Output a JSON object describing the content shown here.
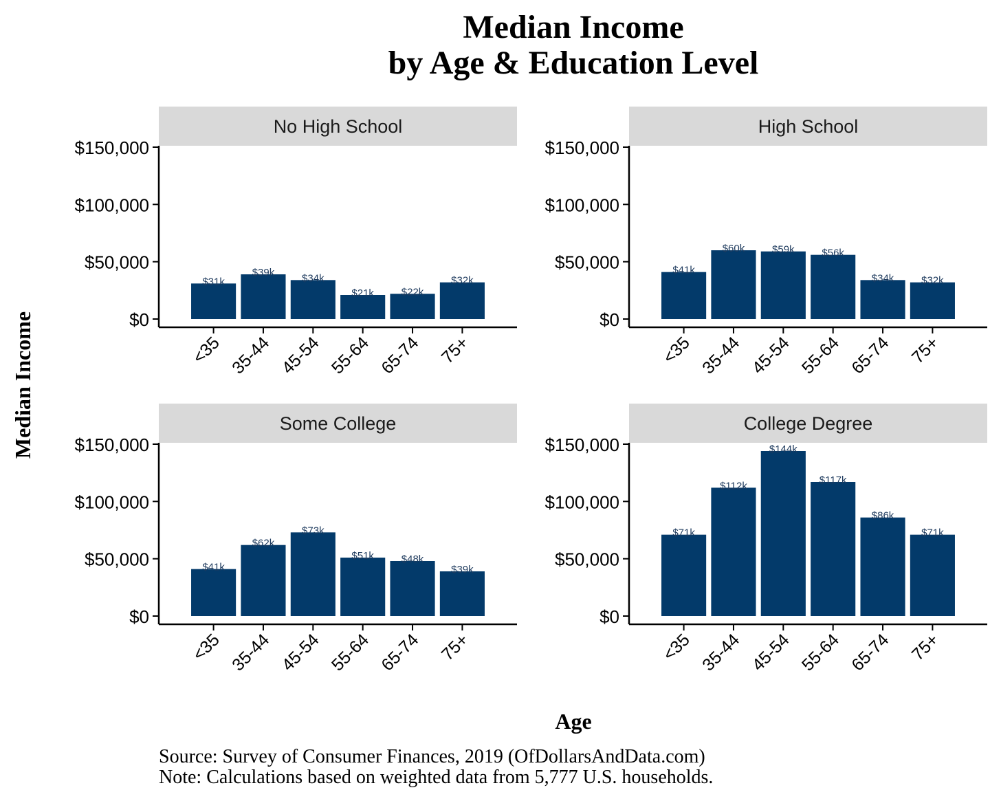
{
  "title": "Median Income",
  "subtitle": "by Age & Education Level",
  "y_label": "Median Income",
  "x_label": "Age",
  "source": "Source:  Survey of Consumer Finances, 2019 (OfDollarsAndData.com)",
  "note": "Note: Calculations based on weighted data from 5,777 U.S. households.",
  "chart_data": [
    {
      "type": "bar",
      "title": "No High School",
      "color": "#033a6a",
      "categories": [
        "<35",
        "35-44",
        "45-54",
        "55-64",
        "65-74",
        "75+"
      ],
      "values": [
        31000,
        39000,
        34000,
        21000,
        22000,
        32000
      ],
      "value_labels": [
        "$31k",
        "$39k",
        "$34k",
        "$21k",
        "$22k",
        "$32k"
      ],
      "ylim": [
        -7200,
        151200
      ],
      "yticks": [
        {
          "value": 0,
          "label": "$0"
        },
        {
          "value": 50000,
          "label": "$50,000"
        },
        {
          "value": 100000,
          "label": "$100,000"
        },
        {
          "value": 150000,
          "label": "$150,000"
        }
      ]
    },
    {
      "type": "bar",
      "title": "High School",
      "color": "#033a6a",
      "categories": [
        "<35",
        "35-44",
        "45-54",
        "55-64",
        "65-74",
        "75+"
      ],
      "values": [
        41000,
        60000,
        59000,
        56000,
        34000,
        32000
      ],
      "value_labels": [
        "$41k",
        "$60k",
        "$59k",
        "$56k",
        "$34k",
        "$32k"
      ],
      "ylim": [
        -7200,
        151200
      ],
      "yticks": [
        {
          "value": 0,
          "label": "$0"
        },
        {
          "value": 50000,
          "label": "$50,000"
        },
        {
          "value": 100000,
          "label": "$100,000"
        },
        {
          "value": 150000,
          "label": "$150,000"
        }
      ]
    },
    {
      "type": "bar",
      "title": "Some College",
      "color": "#033a6a",
      "categories": [
        "<35",
        "35-44",
        "45-54",
        "55-64",
        "65-74",
        "75+"
      ],
      "values": [
        41000,
        62000,
        73000,
        51000,
        48000,
        39000
      ],
      "value_labels": [
        "$41k",
        "$62k",
        "$73k",
        "$51k",
        "$48k",
        "$39k"
      ],
      "ylim": [
        -7200,
        151200
      ],
      "yticks": [
        {
          "value": 0,
          "label": "$0"
        },
        {
          "value": 50000,
          "label": "$50,000"
        },
        {
          "value": 100000,
          "label": "$100,000"
        },
        {
          "value": 150000,
          "label": "$150,000"
        }
      ]
    },
    {
      "type": "bar",
      "title": "College Degree",
      "color": "#033a6a",
      "categories": [
        "<35",
        "35-44",
        "45-54",
        "55-64",
        "65-74",
        "75+"
      ],
      "values": [
        71000,
        112000,
        144000,
        117000,
        86000,
        71000
      ],
      "value_labels": [
        "$71k",
        "$112k",
        "$144k",
        "$117k",
        "$86k",
        "$71k"
      ],
      "ylim": [
        -7200,
        151200
      ],
      "yticks": [
        {
          "value": 0,
          "label": "$0"
        },
        {
          "value": 50000,
          "label": "$50,000"
        },
        {
          "value": 100000,
          "label": "$100,000"
        },
        {
          "value": 150000,
          "label": "$150,000"
        }
      ]
    }
  ]
}
